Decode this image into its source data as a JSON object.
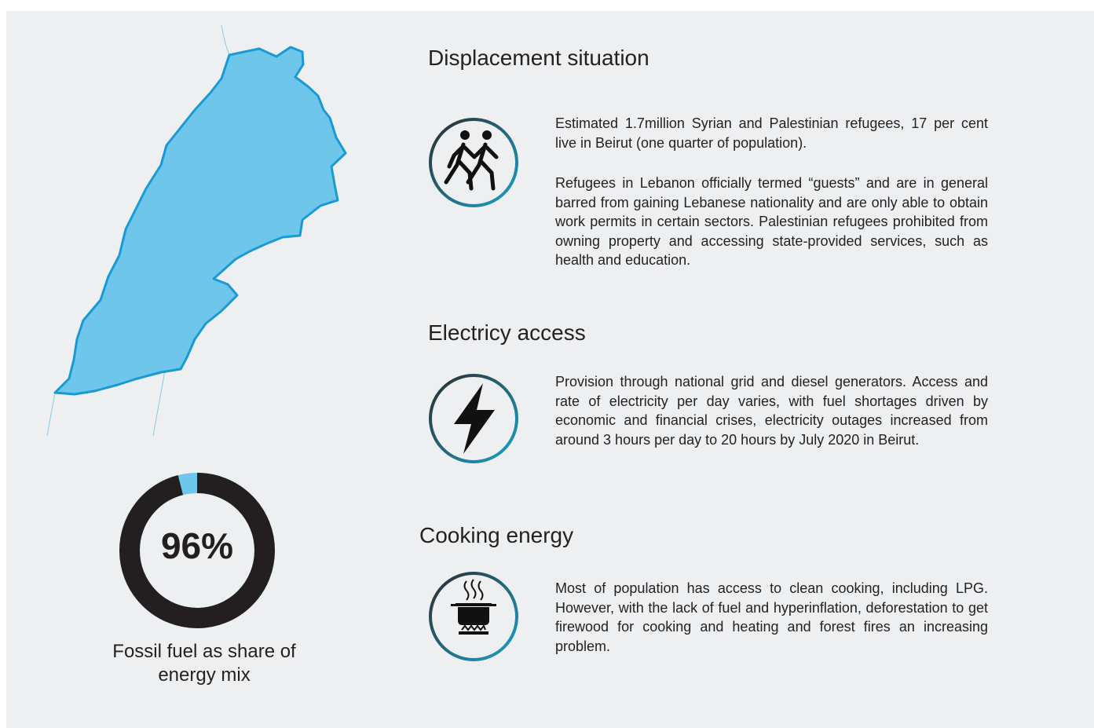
{
  "sections": [
    {
      "heading": "Displacement situation",
      "paragraphs": [
        "Estimated 1.7million Syrian and Palestinian refugees, 17 per cent live in Beirut (one quarter of population).",
        "Refugees in Lebanon officially termed “guests” and are in general barred from gaining Lebanese nationality and are only able to obtain work permits in certain sectors. Palestinian refugees prohibited from owning property and accessing state-provided services, such as health and education."
      ]
    },
    {
      "heading": "Electricy access",
      "paragraphs": [
        "Provision through national grid and diesel generators. Access and rate of electricity per day varies, with fuel shortages driven by economic and financial crises, electricity outages increased from around 3 hours per day to 20 hours by July 2020 in Beirut."
      ]
    },
    {
      "heading": "Cooking energy",
      "paragraphs": [
        "Most of population has access to clean cooking, including LPG. However, with the lack of fuel and hyperinflation, deforestation to get firewood for cooking and heating and forest fires an increasing problem."
      ]
    }
  ],
  "gauge": {
    "value": 96,
    "label": "96%",
    "caption": "Fossil fuel as share of energy mix",
    "color": "#231f20",
    "rest_color": "#6ec6ea"
  }
}
